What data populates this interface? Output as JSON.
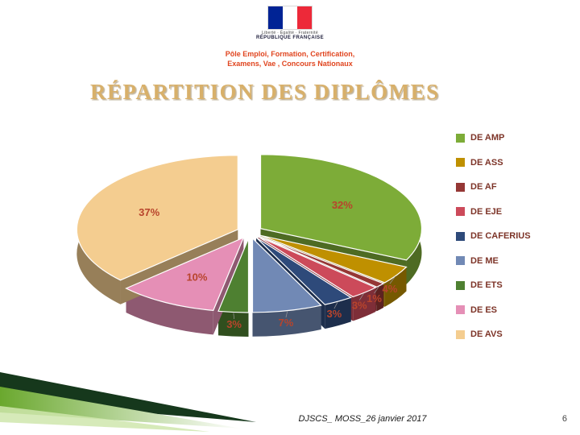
{
  "header": {
    "logo": {
      "flag_colors": [
        "#002395",
        "#ffffff",
        "#ed2939"
      ],
      "motto": "Liberté · Égalité · Fraternité",
      "institution": "RÉPUBLIQUE FRANÇAISE"
    },
    "dept_line1": "Pôle Emploi, Formation, Certification,",
    "dept_line2": "Examens, Vae , Concours Nationaux",
    "dept_color": "#e0451f"
  },
  "title": {
    "text": "RÉPARTITION DES DIPLÔMES",
    "color": "#d8b06a"
  },
  "chart_data": {
    "type": "pie",
    "style": "3d-exploded",
    "title": "RÉPARTITION DES DIPLÔMES",
    "labels": [
      "DE AMP",
      "DE ASS",
      "DE AF",
      "DE EJE",
      "DE CAFERIUS",
      "DE ME",
      "DE ETS",
      "DE ES",
      "DE AVS"
    ],
    "values": [
      32,
      4,
      1,
      3,
      3,
      7,
      3,
      10,
      37
    ],
    "unit": "percent",
    "colors": [
      "#7dac38",
      "#bf9000",
      "#953735",
      "#cc4a5a",
      "#2e4a7a",
      "#7189b5",
      "#4e8031",
      "#e58fb6",
      "#f4cd90"
    ],
    "data_label_color": "#b8442c",
    "legend_position": "right",
    "legend_text_color": "#7d3428"
  },
  "footer": {
    "text": "DJSCS_ MOSS_26 janvier 2017",
    "page_number": "6"
  },
  "decor": {
    "swoosh_colors": [
      "#16381c",
      "#6aa82e",
      "#cfe6ad"
    ]
  }
}
